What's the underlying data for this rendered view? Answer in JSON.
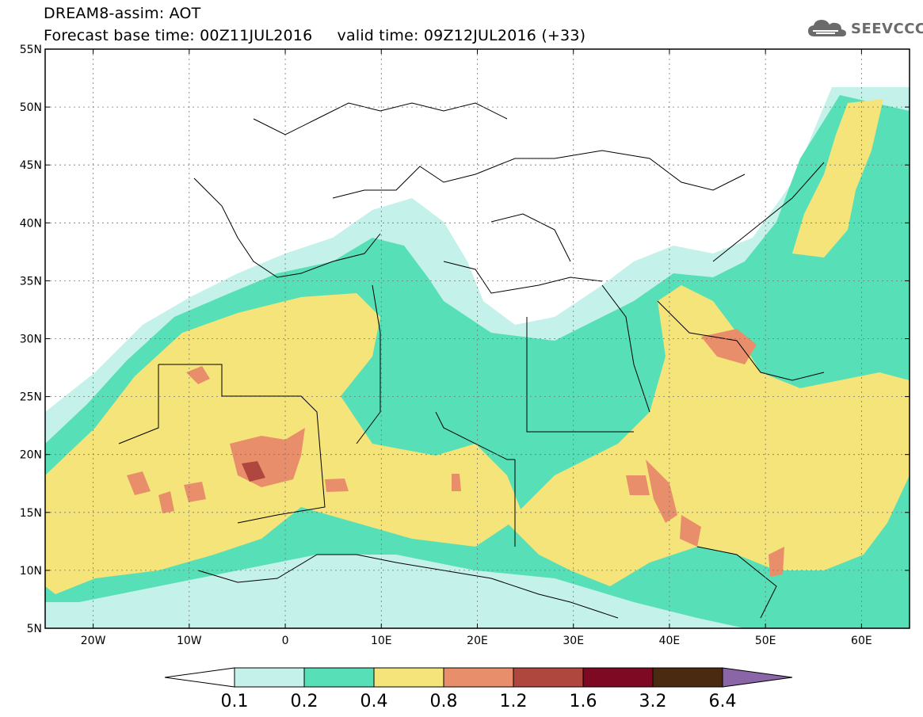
{
  "header": {
    "line1": "DREAM8-assim: AOT",
    "line2": "Forecast base time: 00Z11JUL2016     valid time: 09Z12JUL2016 (+33)"
  },
  "logo": {
    "text": "SEEVCCC",
    "icon": "cloud-icon"
  },
  "map": {
    "lon_range": [
      -25,
      65
    ],
    "lat_range": [
      5,
      55
    ],
    "lon_ticks": [
      {
        "value": -20,
        "label": "20W"
      },
      {
        "value": -10,
        "label": "10W"
      },
      {
        "value": 0,
        "label": "0"
      },
      {
        "value": 10,
        "label": "10E"
      },
      {
        "value": 20,
        "label": "20E"
      },
      {
        "value": 30,
        "label": "30E"
      },
      {
        "value": 40,
        "label": "40E"
      },
      {
        "value": 50,
        "label": "50E"
      },
      {
        "value": 60,
        "label": "60E"
      }
    ],
    "lat_ticks": [
      {
        "value": 55,
        "label": "55N"
      },
      {
        "value": 50,
        "label": "50N"
      },
      {
        "value": 45,
        "label": "45N"
      },
      {
        "value": 40,
        "label": "40N"
      },
      {
        "value": 35,
        "label": "35N"
      },
      {
        "value": 30,
        "label": "30N"
      },
      {
        "value": 25,
        "label": "25N"
      },
      {
        "value": 20,
        "label": "20N"
      },
      {
        "value": 15,
        "label": "15N"
      },
      {
        "value": 10,
        "label": "10N"
      },
      {
        "value": 5,
        "label": "5N"
      }
    ],
    "grid": true
  },
  "colorbar": {
    "bins": [
      {
        "color": "#ffffff"
      },
      {
        "color": "#c4f2ea"
      },
      {
        "color": "#57e0b7"
      },
      {
        "color": "#f5e479"
      },
      {
        "color": "#e98e6b"
      },
      {
        "color": "#b0473e"
      },
      {
        "color": "#7d0a22"
      },
      {
        "color": "#4b2a12"
      },
      {
        "color": "#8a66a8"
      }
    ],
    "labels": [
      "0.1",
      "0.2",
      "0.4",
      "0.8",
      "1.2",
      "1.6",
      "3.2",
      "6.4"
    ]
  }
}
